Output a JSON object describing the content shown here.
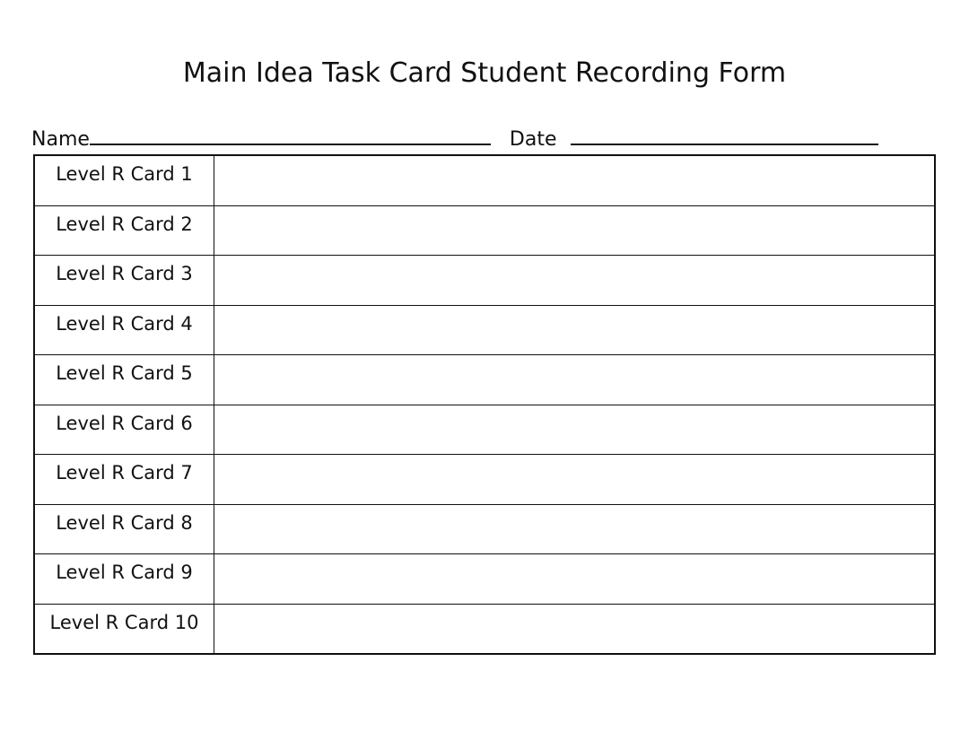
{
  "title": "Main Idea Task Card Student Recording Form",
  "name_label": "Name",
  "date_label": "Date",
  "rows": [
    "Level R Card 1",
    "Level R Card 2",
    "Level R Card 3",
    "Level R Card 4",
    "Level R Card 5",
    "Level R Card 6",
    "Level R Card 7",
    "Level R Card 8",
    "Level R Card 9",
    "Level R Card 10"
  ]
}
